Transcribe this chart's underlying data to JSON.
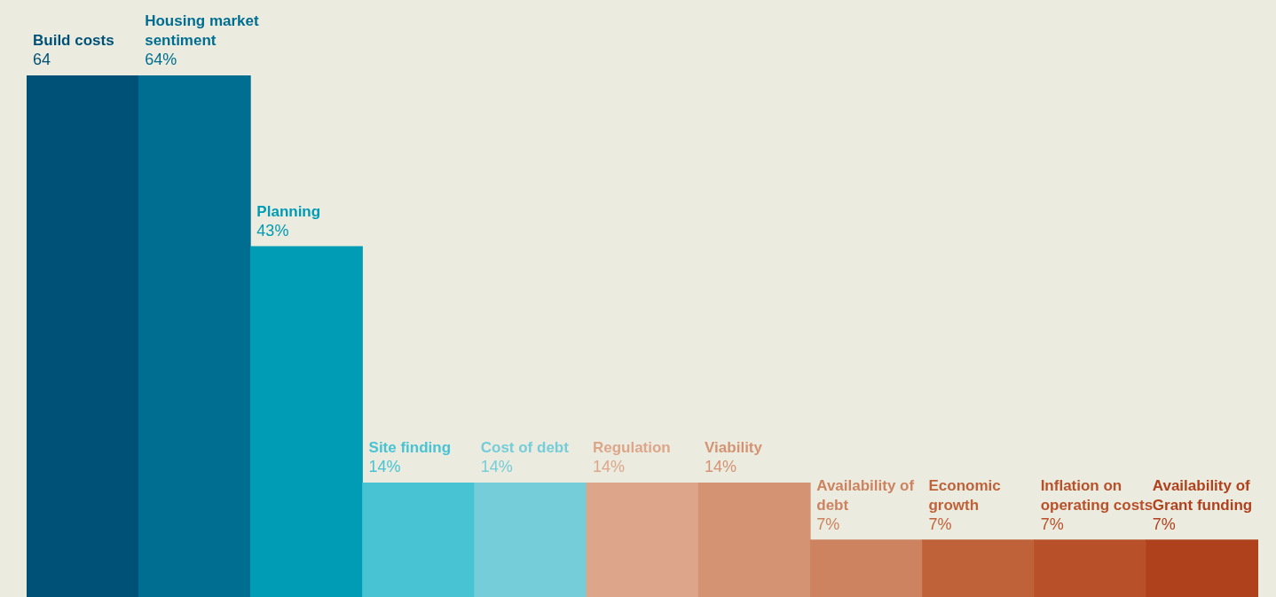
{
  "chart_data": {
    "type": "bar",
    "categories": [
      "Build costs",
      "Housing market sentiment",
      "Planning",
      "Site finding",
      "Cost of debt",
      "Regulation",
      "Viability",
      "Availability of debt",
      "Economic growth",
      "Inflation on operating costs",
      "Availability of Grant funding"
    ],
    "values": [
      64,
      64,
      43,
      14,
      14,
      14,
      14,
      7,
      7,
      7,
      7
    ],
    "value_labels": [
      "64",
      "64%",
      "43%",
      "14%",
      "14%",
      "14%",
      "14%",
      "7%",
      "7%",
      "7%",
      "7%"
    ],
    "colors": [
      "#005177",
      "#006e91",
      "#009bb4",
      "#48c3d3",
      "#75cdd9",
      "#dda68b",
      "#d49373",
      "#cd8260",
      "#c06239",
      "#b85029",
      "#b0411d"
    ],
    "ylim": [
      0,
      64
    ],
    "grid": false,
    "legend": false,
    "tick_labels": false
  }
}
